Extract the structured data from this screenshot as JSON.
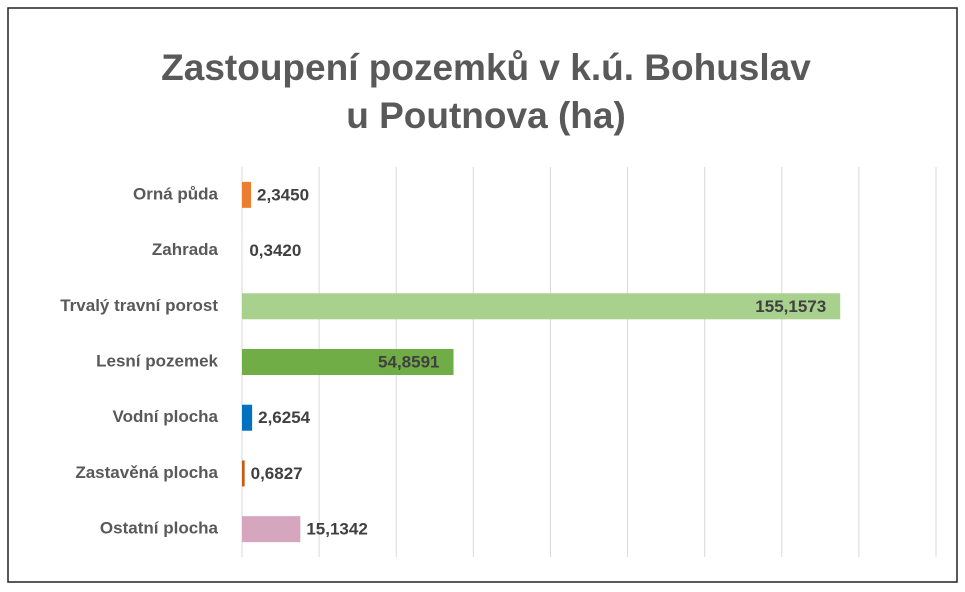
{
  "chart_data": {
    "type": "bar",
    "orientation": "horizontal",
    "title": [
      "Zastoupení pozemků v k.ú. Bohuslav",
      "u Poutnova (ha)"
    ],
    "categories": [
      "Orná půda",
      "Zahrada",
      "Trvalý travní porost",
      "Lesní pozemek",
      "Vodní plocha",
      "Zastavěná plocha",
      "Ostatní plocha"
    ],
    "values": [
      2.345,
      0.342,
      155.1573,
      54.8591,
      2.6254,
      0.6827,
      15.1342
    ],
    "value_labels": [
      "2,3450",
      "0,3420",
      "155,1573",
      "54,8591",
      "2,6254",
      "0,6827",
      "15,1342"
    ],
    "colors": [
      "#ed7d31",
      "#f2f2f2",
      "#a9d18e",
      "#70ad47",
      "#0070c0",
      "#c55a11",
      "#d5a6bd"
    ],
    "xlim": [
      0,
      180
    ],
    "xticks": [
      0,
      20,
      40,
      60,
      80,
      100,
      120,
      140,
      160,
      180
    ],
    "grid": true
  }
}
